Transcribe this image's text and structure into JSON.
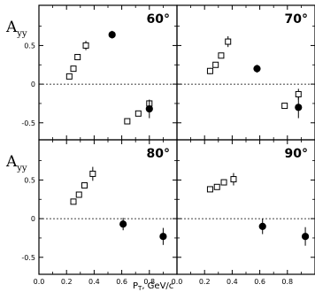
{
  "chart_data": {
    "type": "scatter",
    "ylabel": {
      "main": "A",
      "sub": "yy"
    },
    "xlabel": {
      "main": "P",
      "sub": "T",
      "unit": ", GeV/c"
    },
    "xlim": [
      0,
      1.0
    ],
    "ylim": [
      -0.72,
      1.02
    ],
    "x_ticks": [
      0,
      0.2,
      0.4,
      0.6,
      0.8
    ],
    "x_tick_labels": [
      "0.0",
      "0.2",
      "0.4",
      "0.6",
      "0.8"
    ],
    "y_ticks": [
      0.5,
      0,
      -0.5
    ],
    "y_tick_labels": [
      "0.5",
      "0",
      "-0.5"
    ],
    "zero_line": "dashed",
    "panels": [
      {
        "angle": "60°",
        "series": [
          {
            "marker": "open-square",
            "points": [
              {
                "x": 0.22,
                "y": 0.1,
                "err": 0.03
              },
              {
                "x": 0.25,
                "y": 0.2,
                "err": 0.03
              },
              {
                "x": 0.28,
                "y": 0.35,
                "err": 0.03
              },
              {
                "x": 0.34,
                "y": 0.5,
                "err": 0.06
              },
              {
                "x": 0.64,
                "y": -0.48,
                "err": 0.03
              },
              {
                "x": 0.72,
                "y": -0.38,
                "err": 0.03
              },
              {
                "x": 0.8,
                "y": -0.25,
                "err": 0.03
              }
            ]
          },
          {
            "marker": "filled-circle",
            "points": [
              {
                "x": 0.53,
                "y": 0.64,
                "err": 0.05
              },
              {
                "x": 0.8,
                "y": -0.32,
                "err": 0.12
              }
            ]
          }
        ]
      },
      {
        "angle": "70°",
        "series": [
          {
            "marker": "open-square",
            "points": [
              {
                "x": 0.24,
                "y": 0.17,
                "err": 0.04
              },
              {
                "x": 0.28,
                "y": 0.25,
                "err": 0.03
              },
              {
                "x": 0.32,
                "y": 0.37,
                "err": 0.03
              },
              {
                "x": 0.37,
                "y": 0.55,
                "err": 0.07
              },
              {
                "x": 0.78,
                "y": -0.28,
                "err": 0.03
              },
              {
                "x": 0.88,
                "y": -0.13,
                "err": 0.07
              }
            ]
          },
          {
            "marker": "filled-circle",
            "points": [
              {
                "x": 0.58,
                "y": 0.2,
                "err": 0.05
              },
              {
                "x": 0.88,
                "y": -0.3,
                "err": 0.14
              }
            ]
          }
        ]
      },
      {
        "angle": "80°",
        "series": [
          {
            "marker": "open-square",
            "points": [
              {
                "x": 0.25,
                "y": 0.22,
                "err": 0.03
              },
              {
                "x": 0.29,
                "y": 0.31,
                "err": 0.03
              },
              {
                "x": 0.33,
                "y": 0.43,
                "err": 0.03
              },
              {
                "x": 0.39,
                "y": 0.58,
                "err": 0.09
              }
            ]
          },
          {
            "marker": "filled-circle",
            "points": [
              {
                "x": 0.61,
                "y": -0.07,
                "err": 0.08
              },
              {
                "x": 0.9,
                "y": -0.23,
                "err": 0.11
              }
            ]
          }
        ]
      },
      {
        "angle": "90°",
        "series": [
          {
            "marker": "open-square",
            "points": [
              {
                "x": 0.24,
                "y": 0.38,
                "err": 0.03
              },
              {
                "x": 0.29,
                "y": 0.41,
                "err": 0.03
              },
              {
                "x": 0.34,
                "y": 0.47,
                "err": 0.04
              },
              {
                "x": 0.41,
                "y": 0.51,
                "err": 0.08
              }
            ]
          },
          {
            "marker": "filled-circle",
            "points": [
              {
                "x": 0.62,
                "y": -0.1,
                "err": 0.1
              },
              {
                "x": 0.93,
                "y": -0.23,
                "err": 0.12
              }
            ]
          }
        ]
      }
    ]
  }
}
